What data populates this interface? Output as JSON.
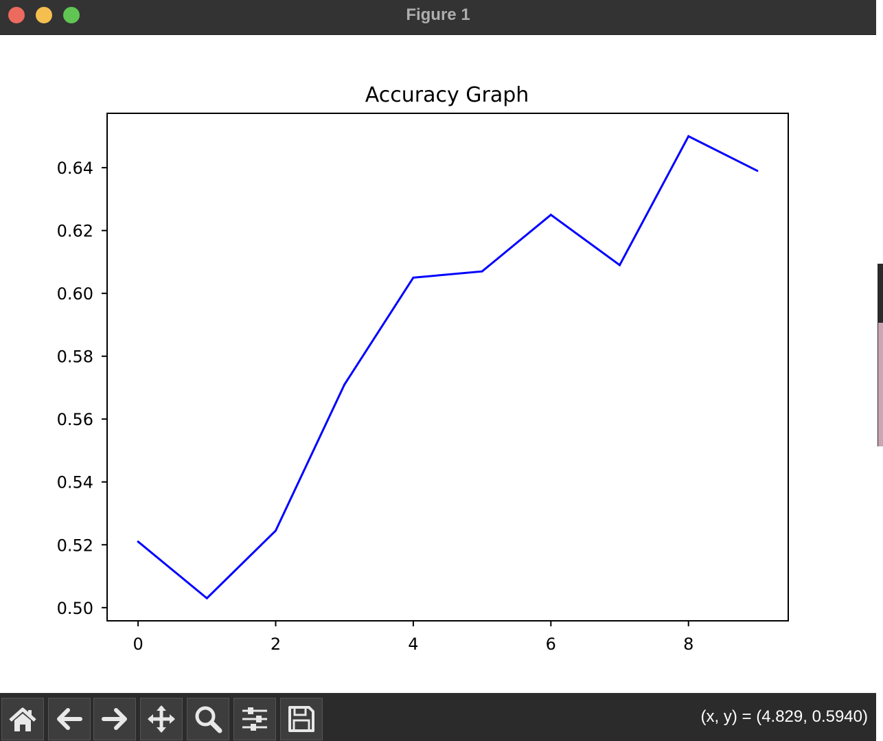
{
  "window": {
    "title": "Figure 1"
  },
  "chart_data": {
    "type": "line",
    "title": "Accuracy Graph",
    "xlabel": "",
    "ylabel": "",
    "x": [
      0,
      1,
      2,
      3,
      4,
      5,
      6,
      7,
      8,
      9
    ],
    "series": [
      {
        "values": [
          0.521,
          0.503,
          0.5245,
          0.571,
          0.605,
          0.607,
          0.625,
          0.609,
          0.65,
          0.639
        ],
        "color": "#0000ff"
      }
    ],
    "xlim": [
      -0.45,
      9.45
    ],
    "ylim": [
      0.4958,
      0.6573
    ],
    "xticks": [
      0,
      2,
      4,
      6,
      8
    ],
    "xtick_labels": [
      "0",
      "2",
      "4",
      "6",
      "8"
    ],
    "yticks": [
      0.5,
      0.52,
      0.54,
      0.56,
      0.58,
      0.6,
      0.62,
      0.64
    ],
    "ytick_labels": [
      "0.50",
      "0.52",
      "0.54",
      "0.56",
      "0.58",
      "0.60",
      "0.62",
      "0.64"
    ],
    "grid": false,
    "legend": "none"
  },
  "toolbar": {
    "buttons": [
      {
        "name": "home-button",
        "icon": "home-icon"
      },
      {
        "name": "back-button",
        "icon": "arrow-left-icon"
      },
      {
        "name": "forward-button",
        "icon": "arrow-right-icon"
      },
      {
        "name": "pan-button",
        "icon": "move-icon"
      },
      {
        "name": "zoom-button",
        "icon": "magnifier-icon"
      },
      {
        "name": "configure-subplots-button",
        "icon": "sliders-icon"
      },
      {
        "name": "save-button",
        "icon": "floppy-disk-icon"
      }
    ],
    "coords_text": "(x, y) = (4.829, 0.5940)"
  }
}
